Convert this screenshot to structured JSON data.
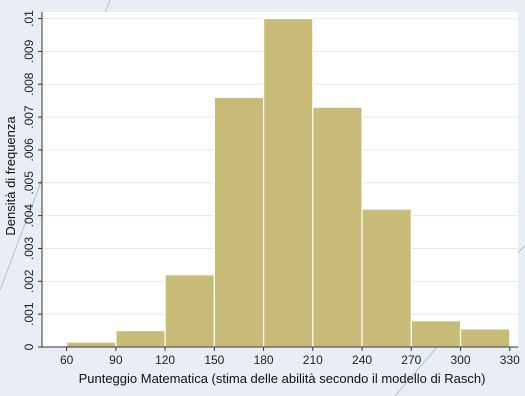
{
  "colors": {
    "outer_background": "#e8eef4",
    "plot_background": "#ffffff",
    "bar_fill": "#c8bb78",
    "bar_stroke": "#ffffff",
    "grid": "#e4e8ee",
    "axis": "#333333",
    "decorative_line": "#a9c3d8"
  },
  "chart_data": {
    "type": "bar",
    "title": "",
    "xlabel": "Punteggio Matematica (stima delle abilità secondo il modello di Rasch)",
    "ylabel": "Densità di frequenza",
    "xlim": [
      45,
      335
    ],
    "ylim": [
      0,
      0.0102
    ],
    "grid": true,
    "x_ticks": [
      60,
      90,
      120,
      150,
      180,
      210,
      240,
      270,
      300,
      330
    ],
    "y_ticks": [
      0,
      0.001,
      0.002,
      0.003,
      0.004,
      0.005,
      0.006,
      0.007,
      0.008,
      0.009,
      0.01
    ],
    "y_tick_labels": [
      "0",
      ".001",
      ".002",
      ".003",
      ".004",
      ".005",
      ".006",
      ".007",
      ".008",
      ".009",
      ".01"
    ],
    "bins": [
      {
        "x0": 60,
        "x1": 90,
        "value": 0.00015
      },
      {
        "x0": 90,
        "x1": 120,
        "value": 0.0005
      },
      {
        "x0": 120,
        "x1": 150,
        "value": 0.0022
      },
      {
        "x0": 150,
        "x1": 180,
        "value": 0.0076
      },
      {
        "x0": 180,
        "x1": 210,
        "value": 0.01
      },
      {
        "x0": 210,
        "x1": 240,
        "value": 0.0073
      },
      {
        "x0": 240,
        "x1": 270,
        "value": 0.0042
      },
      {
        "x0": 270,
        "x1": 300,
        "value": 0.0008
      },
      {
        "x0": 300,
        "x1": 330,
        "value": 0.00055
      }
    ]
  }
}
